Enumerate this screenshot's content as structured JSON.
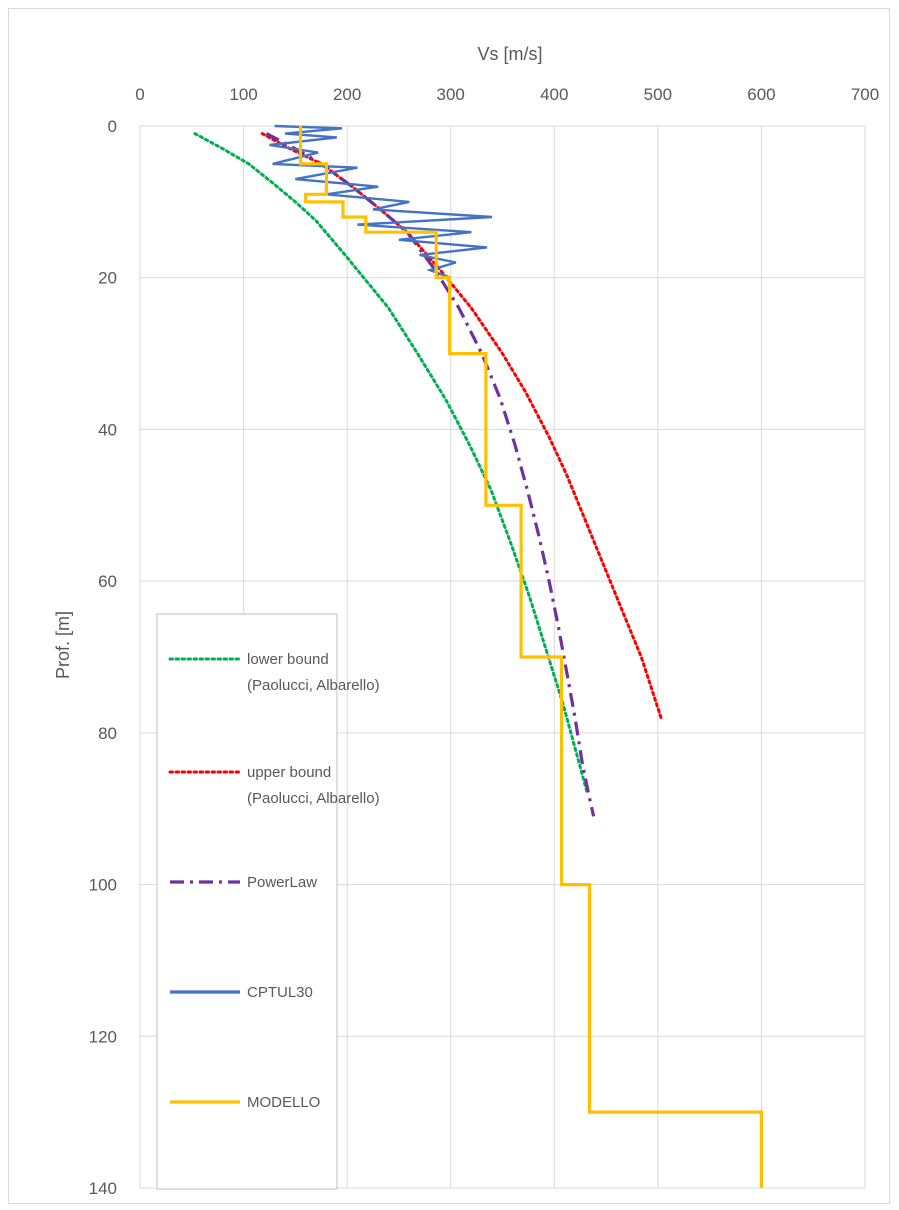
{
  "chart_data": {
    "type": "line",
    "xlabel": "Vs [m/s]",
    "ylabel": "Prof. [m]",
    "xlim": [
      0,
      700
    ],
    "ylim": [
      0,
      140
    ],
    "y_inverted": true,
    "x_axis_position": "top",
    "grid": true,
    "legend_position": "bottom-left",
    "xticks": [
      "0",
      "100",
      "200",
      "300",
      "400",
      "500",
      "600",
      "700"
    ],
    "yticks": [
      "0",
      "20",
      "40",
      "60",
      "80",
      "100",
      "120",
      "140"
    ],
    "series": [
      {
        "name": "lower bound\n(Paolucci, Albarello)",
        "color": "#00b050",
        "dash": "dotted",
        "x": [
          53,
          80,
          105,
          128,
          150,
          170,
          198,
          240,
          268,
          295,
          318,
          339,
          358,
          376,
          392,
          408,
          422,
          432
        ],
        "y": [
          1,
          3,
          5,
          7.5,
          10,
          12.5,
          17,
          24,
          30,
          36,
          42,
          48,
          55,
          62,
          69,
          76,
          83,
          88
        ]
      },
      {
        "name": "upper bound\n(Paolucci, Albarello)",
        "color": "#ff0000",
        "dash": "dotted",
        "x": [
          118,
          145,
          175,
          205,
          232,
          258,
          290,
          320,
          350,
          372,
          395,
          412,
          430,
          448,
          466,
          484,
          503
        ],
        "y": [
          1,
          3,
          5,
          8,
          11,
          14,
          19,
          24,
          30,
          35,
          41,
          46,
          52,
          58,
          64,
          70,
          78
        ]
      },
      {
        "name": "PowerLaw",
        "color": "#7030a0",
        "dash": "dashdot",
        "x": [
          122,
          150,
          175,
          205,
          232,
          258,
          285,
          308,
          330,
          348,
          362,
          374,
          385,
          395,
          404,
          412,
          420,
          427,
          433,
          438
        ],
        "y": [
          1,
          3,
          5,
          8,
          11,
          14,
          19,
          24,
          30,
          36,
          42,
          48,
          54,
          60,
          66,
          72,
          78,
          84,
          88,
          91
        ]
      },
      {
        "name": "CPTUL30",
        "color": "#4472c4",
        "dash": "solid",
        "x": [
          130,
          195,
          140,
          190,
          125,
          172,
          128,
          210,
          150,
          230,
          180,
          260,
          225,
          340,
          210,
          320,
          250,
          335,
          270,
          305,
          280,
          300
        ],
        "y": [
          0,
          0.3,
          1,
          1.5,
          2.5,
          3.5,
          5,
          5.5,
          7,
          8,
          9,
          10,
          11,
          12,
          13,
          14,
          15,
          16,
          17,
          18,
          19,
          20
        ]
      },
      {
        "name": "MODELLO",
        "color": "#ffc000",
        "dash": "solid",
        "x": [
          155,
          155,
          180,
          180,
          160,
          160,
          196,
          196,
          218,
          218,
          286,
          286,
          299,
          299,
          334,
          334,
          368,
          368,
          407,
          407,
          434,
          434,
          600,
          600
        ],
        "y": [
          0,
          5,
          5,
          9,
          9,
          10,
          10,
          12,
          12,
          14,
          14,
          20,
          20,
          30,
          30,
          50,
          50,
          70,
          70,
          100,
          100,
          130,
          130,
          140
        ]
      }
    ]
  }
}
